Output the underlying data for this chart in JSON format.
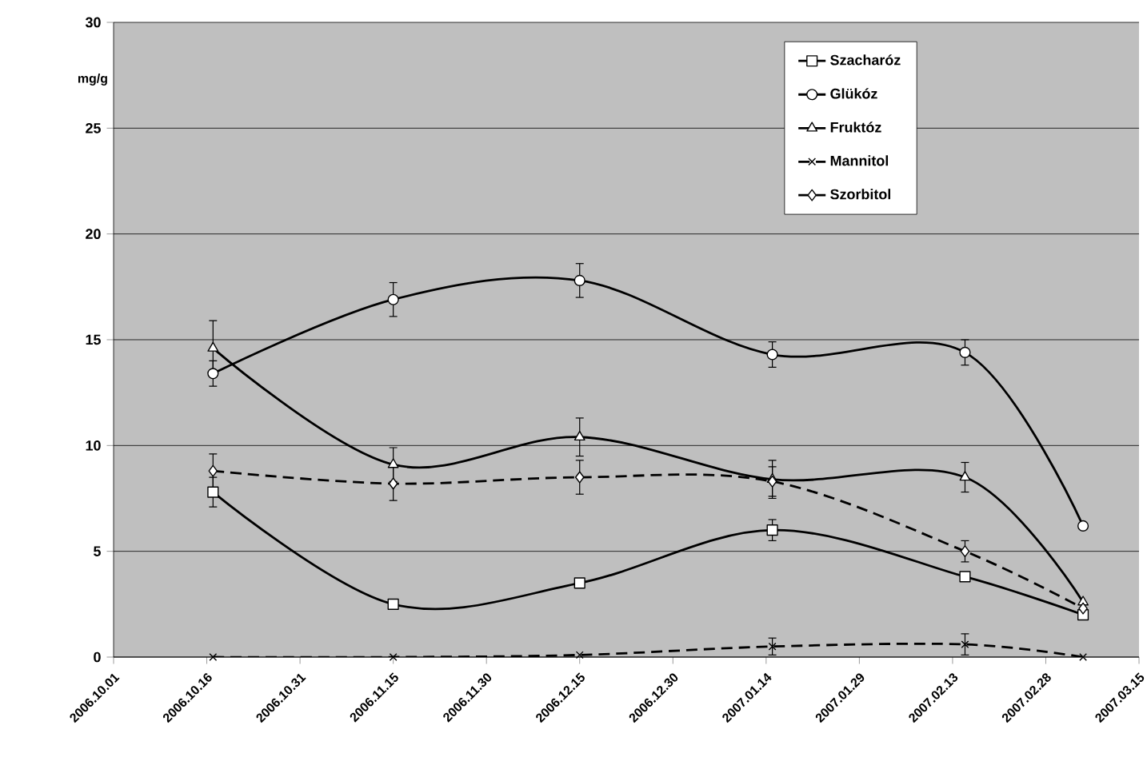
{
  "chart_data": {
    "type": "line",
    "ylabel": "mg/g",
    "x": [
      "2006-10-17",
      "2006-11-15",
      "2006-12-15",
      "2007-01-15",
      "2007-02-15",
      "2007-03-06"
    ],
    "series": [
      {
        "name": "Szacharóz",
        "color": "#000000",
        "marker": "square",
        "line_style": "solid",
        "values": [
          7.8,
          2.5,
          3.5,
          6.0,
          3.8,
          2.0
        ],
        "errors": [
          0.7,
          null,
          null,
          0.5,
          null,
          null
        ]
      },
      {
        "name": "Glükóz",
        "color": "#000000",
        "marker": "circle",
        "line_style": "solid",
        "values": [
          13.4,
          16.9,
          17.8,
          14.3,
          14.4,
          6.2
        ],
        "errors": [
          0.6,
          0.8,
          0.8,
          0.6,
          0.6,
          null
        ]
      },
      {
        "name": "Fruktóz",
        "color": "#000000",
        "marker": "triangle",
        "line_style": "solid",
        "values": [
          14.6,
          9.1,
          10.4,
          8.4,
          8.5,
          2.6
        ],
        "errors": [
          1.3,
          0.8,
          0.9,
          0.9,
          0.7,
          null
        ]
      },
      {
        "name": "Mannitol",
        "color": "#000000",
        "marker": "cross",
        "line_style": "dashed",
        "values": [
          0,
          0,
          0.1,
          0.5,
          0.6,
          0
        ],
        "errors": [
          null,
          null,
          null,
          0.4,
          0.5,
          null
        ]
      },
      {
        "name": "Szorbitol",
        "color": "#000000",
        "marker": "diamond",
        "line_style": "dashed",
        "values": [
          8.8,
          8.2,
          8.5,
          8.3,
          5.0,
          2.3
        ],
        "errors": [
          0.8,
          0.8,
          0.8,
          0.7,
          0.5,
          null
        ]
      }
    ],
    "xlim": [
      "2006-10-01",
      "2007-03-15"
    ],
    "xticks": [
      {
        "value": "2006-10-01",
        "label": "2006.10.01"
      },
      {
        "value": "2006-10-16",
        "label": "2006.10.16"
      },
      {
        "value": "2006-10-31",
        "label": "2006.10.31"
      },
      {
        "value": "2006-11-15",
        "label": "2006.11.15"
      },
      {
        "value": "2006-11-30",
        "label": "2006.11.30"
      },
      {
        "value": "2006-12-15",
        "label": "2006.12.15"
      },
      {
        "value": "2006-12-30",
        "label": "2006.12.30"
      },
      {
        "value": "2007-01-14",
        "label": "2007.01.14"
      },
      {
        "value": "2007-01-29",
        "label": "2007.01.29"
      },
      {
        "value": "2007-02-13",
        "label": "2007.02.13"
      },
      {
        "value": "2007-02-28",
        "label": "2007.02.28"
      },
      {
        "value": "2007-03-15",
        "label": "2007.03.15"
      }
    ],
    "ylim": [
      0,
      30
    ],
    "yticks": [
      0,
      5,
      10,
      15,
      20,
      25,
      30
    ],
    "grid": "y",
    "legend": "top right"
  }
}
